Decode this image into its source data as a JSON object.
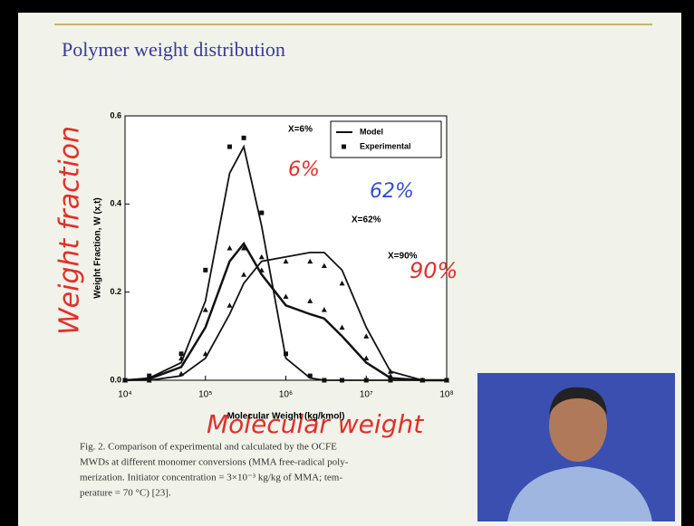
{
  "slide": {
    "title": "Polymer weight distribution",
    "caption": [
      "Fig. 2. Comparison of experimental and calculated by the OCFE",
      "MWDs at different monomer conversions (MMA free-radical poly-",
      "merization. Initiator concentration = 3×10⁻³ kg/kg of MMA; tem-",
      "perature = 70 °C) [23]."
    ],
    "handwriting": {
      "y": "Weight fraction",
      "x": "Molecular weight",
      "a": "6%",
      "b": "62%",
      "c": "90%"
    }
  },
  "chart_data": {
    "type": "line",
    "x_label": "Molecular Weight (kg/kmol)",
    "y_label": "Weight Fraction, W (x,t)",
    "log_x": true,
    "xlim": [
      10000,
      100000000
    ],
    "xticks": [
      {
        "value": 10000,
        "label": "10⁴"
      },
      {
        "value": 100000,
        "label": "10⁵"
      },
      {
        "value": 1000000,
        "label": "10⁶"
      },
      {
        "value": 10000000,
        "label": "10⁷"
      },
      {
        "value": 100000000,
        "label": "10⁸"
      }
    ],
    "ylim": [
      0,
      0.6
    ],
    "yticks": [
      {
        "value": 0,
        "label": "0.0"
      },
      0.2,
      0.4,
      0.6
    ],
    "legend_position": "upper right",
    "x": [
      10000,
      20000,
      50000,
      100000,
      200000,
      300000,
      500000,
      1000000,
      2000000,
      3000000,
      5000000,
      10000000,
      20000000,
      50000000,
      100000000
    ],
    "series": [
      {
        "name": "Model",
        "color": "#111111",
        "curves": [
          {
            "label": "X=6%",
            "values": [
              0,
              0.005,
              0.04,
              0.18,
              0.47,
              0.53,
              0.35,
              0.05,
              0.005,
              0,
              0,
              0,
              0,
              0,
              0
            ]
          },
          {
            "label": "X=62%",
            "values": [
              0,
              0.003,
              0.03,
              0.12,
              0.27,
              0.31,
              0.24,
              0.17,
              0.15,
              0.14,
              0.1,
              0.04,
              0.005,
              0,
              0
            ]
          },
          {
            "label": "X=90%",
            "values": [
              0,
              0,
              0.01,
              0.05,
              0.15,
              0.22,
              0.27,
              0.28,
              0.29,
              0.29,
              0.25,
              0.12,
              0.02,
              0,
              0
            ]
          }
        ]
      },
      {
        "name": "Experimental",
        "color": "#111111",
        "curves": [
          {
            "marker": "square",
            "values": [
              0,
              0.01,
              0.06,
              0.25,
              0.53,
              0.55,
              0.38,
              0.06,
              0.01,
              0,
              0,
              0,
              0,
              0,
              0
            ]
          },
          {
            "marker": "triangle",
            "values": [
              0,
              0.005,
              0.05,
              0.16,
              0.3,
              0.3,
              0.25,
              0.19,
              0.18,
              0.16,
              0.12,
              0.05,
              0.01,
              0,
              0
            ]
          },
          {
            "marker": "triangle",
            "values": [
              0,
              0,
              0.015,
              0.06,
              0.17,
              0.24,
              0.28,
              0.27,
              0.27,
              0.26,
              0.22,
              0.1,
              0.02,
              0,
              0
            ]
          }
        ]
      }
    ]
  }
}
